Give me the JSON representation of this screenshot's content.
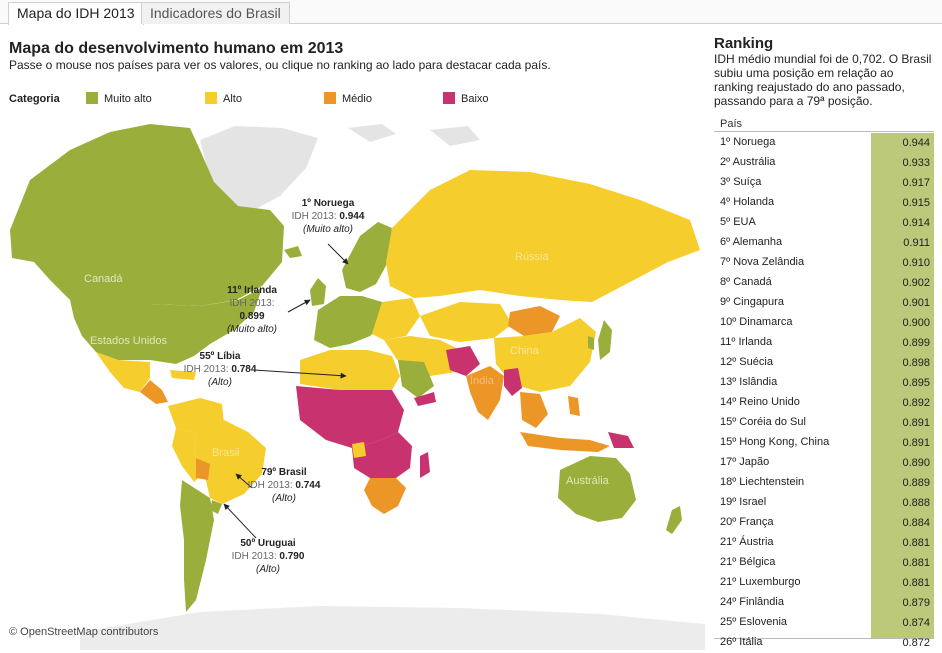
{
  "tabs": [
    {
      "label": "Mapa do IDH 2013",
      "active": true
    },
    {
      "label": "Indicadores do Brasil",
      "active": false
    }
  ],
  "map": {
    "title": "Mapa do desenvolvimento humano em 2013",
    "subtitle": "Passe o mouse nos países para ver os valores, ou clique no ranking ao lado para destacar cada país.",
    "legend": {
      "title": "Categoria",
      "items": [
        {
          "label": "Muito alto",
          "color": "#9aaf3b"
        },
        {
          "label": "Alto",
          "color": "#f5cd2d"
        },
        {
          "label": "Médio",
          "color": "#ec9628"
        },
        {
          "label": "Baixo",
          "color": "#c8326e"
        }
      ]
    },
    "labels": {
      "canada": "Canadá",
      "usa": "Estados Unidos",
      "russia": "Rússia",
      "china": "China",
      "india": "Índia",
      "brazil": "Brasil",
      "australia": "Austrália"
    },
    "attribution": "© OpenStreetMap contributors",
    "annotations": [
      {
        "name": "1º Noruega",
        "label": "IDH 2013:",
        "value": "0.944",
        "category": "(Muito alto)"
      },
      {
        "name": "11º Irlanda",
        "label": "IDH 2013:",
        "value": "0.899",
        "category": "(Muito alto)"
      },
      {
        "name": "55º Líbia",
        "label": "IDH 2013:",
        "value": "0.784",
        "category": "(Alto)"
      },
      {
        "name": "79º Brasil",
        "label": "IDH 2013:",
        "value": "0.744",
        "category": "(Alto)"
      },
      {
        "name": "50º Uruguai",
        "label": "IDH 2013:",
        "value": "0.790",
        "category": "(Alto)"
      }
    ]
  },
  "ranking": {
    "title": "Ranking",
    "description": "IDH médio mundial foi de 0,702. O Brasil subiu uma posição em relação ao ranking reajustado do ano passado, passando para a 79ª posição.",
    "column_header": "País",
    "bar_color": "#bcc87a",
    "rows": [
      {
        "country": "1º Noruega",
        "value": "0.944"
      },
      {
        "country": "2º Austrália",
        "value": "0.933"
      },
      {
        "country": "3º Suíça",
        "value": "0.917"
      },
      {
        "country": "4º Holanda",
        "value": "0.915"
      },
      {
        "country": "5º EUA",
        "value": "0.914"
      },
      {
        "country": "6º Alemanha",
        "value": "0.911"
      },
      {
        "country": "7º Nova Zelândia",
        "value": "0.910"
      },
      {
        "country": "8º Canadá",
        "value": "0.902"
      },
      {
        "country": "9º Cingapura",
        "value": "0.901"
      },
      {
        "country": "10º Dinamarca",
        "value": "0.900"
      },
      {
        "country": "11º Irlanda",
        "value": "0.899"
      },
      {
        "country": "12º Suécia",
        "value": "0.898"
      },
      {
        "country": "13º Islândia",
        "value": "0.895"
      },
      {
        "country": "14º Reino Unido",
        "value": "0.892"
      },
      {
        "country": "15º Coréia do Sul",
        "value": "0.891"
      },
      {
        "country": "15º Hong Kong, China",
        "value": "0.891"
      },
      {
        "country": "17º Japão",
        "value": "0.890"
      },
      {
        "country": "18º Liechtenstein",
        "value": "0.889"
      },
      {
        "country": "19º Israel",
        "value": "0.888"
      },
      {
        "country": "20º França",
        "value": "0.884"
      },
      {
        "country": "21º Áustria",
        "value": "0.881"
      },
      {
        "country": "21º Bélgica",
        "value": "0.881"
      },
      {
        "country": "21º Luxemburgo",
        "value": "0.881"
      },
      {
        "country": "24º Finlândia",
        "value": "0.879"
      },
      {
        "country": "25º Eslovenia",
        "value": "0.874"
      },
      {
        "country": "26º Itália",
        "value": "0.872"
      }
    ]
  }
}
